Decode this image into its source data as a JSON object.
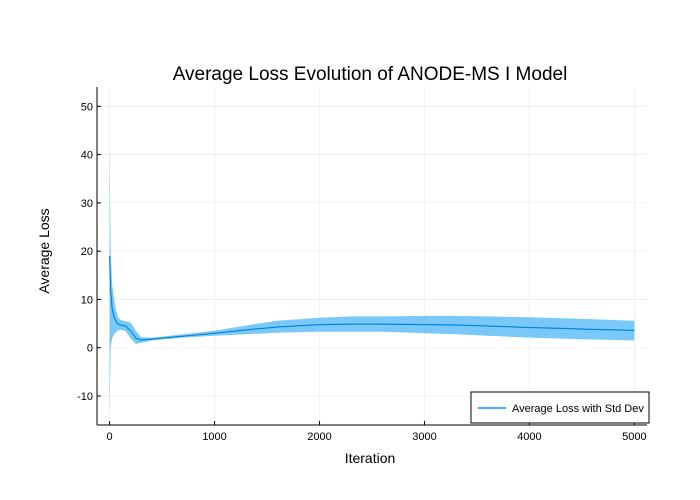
{
  "chart_data": {
    "type": "line",
    "title": "Average Loss Evolution of ANODE-MS I Model",
    "xlabel": "Iteration",
    "ylabel": "Average Loss",
    "xlim": [
      -120,
      5120
    ],
    "ylim": [
      -16,
      54
    ],
    "xticks": [
      0,
      1000,
      2000,
      3000,
      4000,
      5000
    ],
    "yticks": [
      -10,
      0,
      10,
      20,
      30,
      40,
      50
    ],
    "grid": true,
    "legend_position": "bottom-right",
    "series": [
      {
        "name": "Average Loss with Std Dev",
        "color": "#009af9",
        "band_color": "#5bbcf8",
        "x": [
          0,
          10,
          25,
          50,
          75,
          100,
          150,
          200,
          250,
          300,
          400,
          500,
          700,
          1000,
          1300,
          1600,
          2000,
          2300,
          2600,
          3000,
          3300,
          3600,
          4000,
          4300,
          4600,
          5000
        ],
        "mean": [
          19,
          12,
          8,
          6,
          5,
          4.7,
          4.5,
          3.5,
          2,
          1.6,
          1.8,
          2.0,
          2.4,
          3.0,
          3.7,
          4.3,
          4.8,
          4.9,
          4.9,
          4.8,
          4.7,
          4.5,
          4.2,
          4.0,
          3.8,
          3.6
        ],
        "upper": [
          42,
          20,
          13,
          9,
          6.5,
          5.8,
          5.5,
          5.2,
          3.5,
          2.2,
          2.1,
          2.3,
          2.8,
          3.5,
          4.6,
          5.6,
          6.2,
          6.5,
          6.5,
          6.6,
          6.6,
          6.5,
          6.3,
          6.1,
          5.9,
          5.6
        ],
        "lower": [
          -14,
          0,
          2,
          3,
          3.5,
          3.7,
          3.5,
          2,
          0.8,
          1.0,
          1.5,
          1.7,
          2.1,
          2.5,
          2.8,
          3.1,
          3.3,
          3.3,
          3.3,
          3.0,
          2.8,
          2.5,
          2.1,
          1.9,
          1.7,
          1.5
        ]
      }
    ]
  }
}
